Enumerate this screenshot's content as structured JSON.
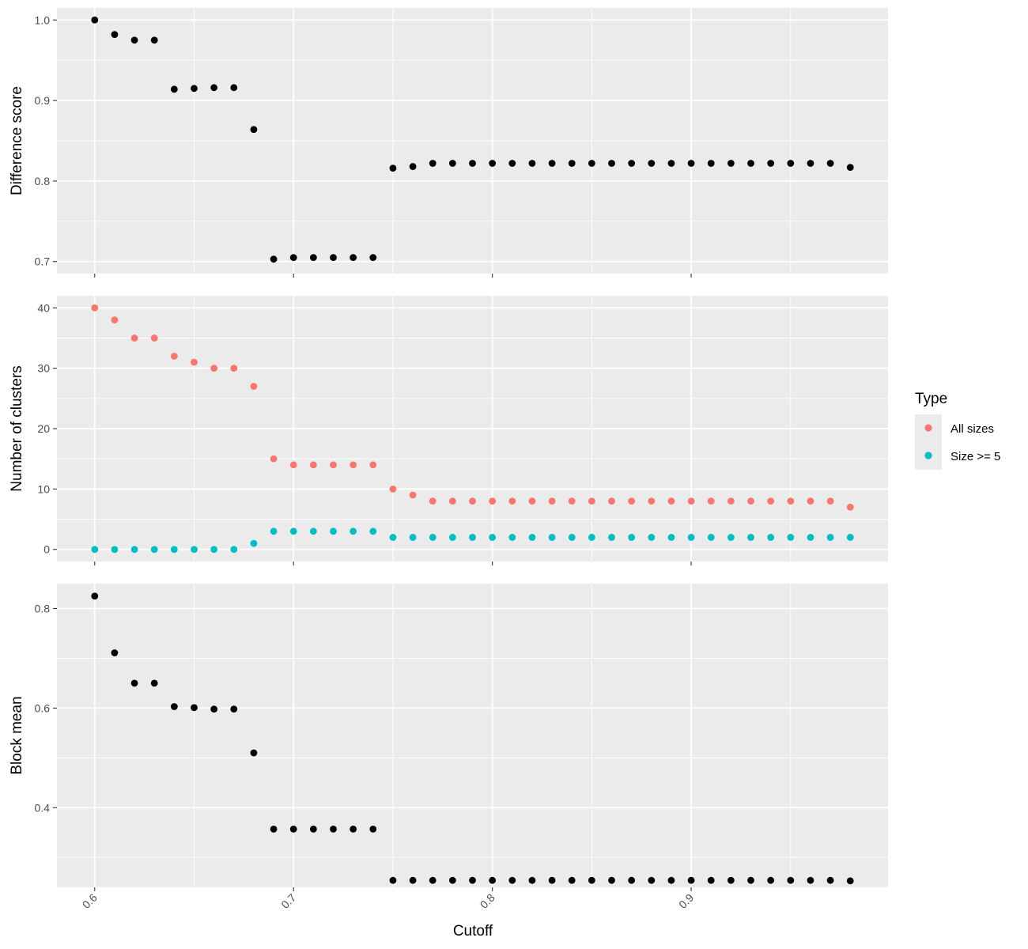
{
  "chart_data": [
    {
      "type": "scatter",
      "id": "difference",
      "xlabel": "",
      "ylabel": "Difference score",
      "ylim": [
        0.685,
        1.015
      ],
      "yticks": [
        0.7,
        0.8,
        0.9,
        1.0
      ],
      "ytick_labels": [
        "0.7",
        "0.8",
        "0.9",
        "1.0"
      ],
      "grid": true,
      "series": [
        {
          "color": "#000000",
          "points": [
            [
              0.6,
              1.0
            ],
            [
              0.61,
              0.982
            ],
            [
              0.62,
              0.975
            ],
            [
              0.63,
              0.975
            ],
            [
              0.64,
              0.914
            ],
            [
              0.65,
              0.915
            ],
            [
              0.66,
              0.916
            ],
            [
              0.67,
              0.916
            ],
            [
              0.68,
              0.864
            ],
            [
              0.69,
              0.703
            ],
            [
              0.7,
              0.705
            ],
            [
              0.71,
              0.705
            ],
            [
              0.72,
              0.705
            ],
            [
              0.73,
              0.705
            ],
            [
              0.74,
              0.705
            ],
            [
              0.75,
              0.816
            ],
            [
              0.76,
              0.818
            ],
            [
              0.77,
              0.822
            ],
            [
              0.78,
              0.822
            ],
            [
              0.79,
              0.822
            ],
            [
              0.8,
              0.822
            ],
            [
              0.81,
              0.822
            ],
            [
              0.82,
              0.822
            ],
            [
              0.83,
              0.822
            ],
            [
              0.84,
              0.822
            ],
            [
              0.85,
              0.822
            ],
            [
              0.86,
              0.822
            ],
            [
              0.87,
              0.822
            ],
            [
              0.88,
              0.822
            ],
            [
              0.89,
              0.822
            ],
            [
              0.9,
              0.822
            ],
            [
              0.91,
              0.822
            ],
            [
              0.92,
              0.822
            ],
            [
              0.93,
              0.822
            ],
            [
              0.94,
              0.822
            ],
            [
              0.95,
              0.822
            ],
            [
              0.96,
              0.822
            ],
            [
              0.97,
              0.822
            ],
            [
              0.98,
              0.817
            ]
          ]
        }
      ]
    },
    {
      "type": "scatter",
      "id": "clusters",
      "xlabel": "",
      "ylabel": "Number of clusters",
      "ylim": [
        -2,
        42
      ],
      "yticks": [
        0,
        10,
        20,
        30,
        40
      ],
      "ytick_labels": [
        "0",
        "10",
        "20",
        "30",
        "40"
      ],
      "grid": true,
      "series": [
        {
          "name": "All sizes",
          "color": "#f8766d",
          "points": [
            [
              0.6,
              40
            ],
            [
              0.61,
              38
            ],
            [
              0.62,
              35
            ],
            [
              0.63,
              35
            ],
            [
              0.64,
              32
            ],
            [
              0.65,
              31
            ],
            [
              0.66,
              30
            ],
            [
              0.67,
              30
            ],
            [
              0.68,
              27
            ],
            [
              0.69,
              15
            ],
            [
              0.7,
              14
            ],
            [
              0.71,
              14
            ],
            [
              0.72,
              14
            ],
            [
              0.73,
              14
            ],
            [
              0.74,
              14
            ],
            [
              0.75,
              10
            ],
            [
              0.76,
              9
            ],
            [
              0.77,
              8
            ],
            [
              0.78,
              8
            ],
            [
              0.79,
              8
            ],
            [
              0.8,
              8
            ],
            [
              0.81,
              8
            ],
            [
              0.82,
              8
            ],
            [
              0.83,
              8
            ],
            [
              0.84,
              8
            ],
            [
              0.85,
              8
            ],
            [
              0.86,
              8
            ],
            [
              0.87,
              8
            ],
            [
              0.88,
              8
            ],
            [
              0.89,
              8
            ],
            [
              0.9,
              8
            ],
            [
              0.91,
              8
            ],
            [
              0.92,
              8
            ],
            [
              0.93,
              8
            ],
            [
              0.94,
              8
            ],
            [
              0.95,
              8
            ],
            [
              0.96,
              8
            ],
            [
              0.97,
              8
            ],
            [
              0.98,
              7
            ]
          ]
        },
        {
          "name": "Size >= 5",
          "color": "#00bfc4",
          "points": [
            [
              0.6,
              0
            ],
            [
              0.61,
              0
            ],
            [
              0.62,
              0
            ],
            [
              0.63,
              0
            ],
            [
              0.64,
              0
            ],
            [
              0.65,
              0
            ],
            [
              0.66,
              0
            ],
            [
              0.67,
              0
            ],
            [
              0.68,
              1
            ],
            [
              0.69,
              3
            ],
            [
              0.7,
              3
            ],
            [
              0.71,
              3
            ],
            [
              0.72,
              3
            ],
            [
              0.73,
              3
            ],
            [
              0.74,
              3
            ],
            [
              0.75,
              2
            ],
            [
              0.76,
              2
            ],
            [
              0.77,
              2
            ],
            [
              0.78,
              2
            ],
            [
              0.79,
              2
            ],
            [
              0.8,
              2
            ],
            [
              0.81,
              2
            ],
            [
              0.82,
              2
            ],
            [
              0.83,
              2
            ],
            [
              0.84,
              2
            ],
            [
              0.85,
              2
            ],
            [
              0.86,
              2
            ],
            [
              0.87,
              2
            ],
            [
              0.88,
              2
            ],
            [
              0.89,
              2
            ],
            [
              0.9,
              2
            ],
            [
              0.91,
              2
            ],
            [
              0.92,
              2
            ],
            [
              0.93,
              2
            ],
            [
              0.94,
              2
            ],
            [
              0.95,
              2
            ],
            [
              0.96,
              2
            ],
            [
              0.97,
              2
            ],
            [
              0.98,
              2
            ]
          ]
        }
      ]
    },
    {
      "type": "scatter",
      "id": "blockmean",
      "xlabel": "Cutoff",
      "ylabel": "Block mean",
      "ylim": [
        0.24,
        0.85
      ],
      "yticks": [
        0.4,
        0.6,
        0.8
      ],
      "ytick_labels": [
        "0.4",
        "0.6",
        "0.8"
      ],
      "grid": true,
      "series": [
        {
          "color": "#000000",
          "points": [
            [
              0.6,
              0.825
            ],
            [
              0.61,
              0.711
            ],
            [
              0.62,
              0.65
            ],
            [
              0.63,
              0.65
            ],
            [
              0.64,
              0.603
            ],
            [
              0.65,
              0.601
            ],
            [
              0.66,
              0.598
            ],
            [
              0.67,
              0.598
            ],
            [
              0.68,
              0.51
            ],
            [
              0.69,
              0.357
            ],
            [
              0.7,
              0.357
            ],
            [
              0.71,
              0.357
            ],
            [
              0.72,
              0.357
            ],
            [
              0.73,
              0.357
            ],
            [
              0.74,
              0.357
            ],
            [
              0.75,
              0.254
            ],
            [
              0.76,
              0.254
            ],
            [
              0.77,
              0.254
            ],
            [
              0.78,
              0.254
            ],
            [
              0.79,
              0.254
            ],
            [
              0.8,
              0.254
            ],
            [
              0.81,
              0.254
            ],
            [
              0.82,
              0.254
            ],
            [
              0.83,
              0.254
            ],
            [
              0.84,
              0.254
            ],
            [
              0.85,
              0.254
            ],
            [
              0.86,
              0.254
            ],
            [
              0.87,
              0.254
            ],
            [
              0.88,
              0.254
            ],
            [
              0.89,
              0.254
            ],
            [
              0.9,
              0.254
            ],
            [
              0.91,
              0.254
            ],
            [
              0.92,
              0.254
            ],
            [
              0.93,
              0.254
            ],
            [
              0.94,
              0.254
            ],
            [
              0.95,
              0.254
            ],
            [
              0.96,
              0.254
            ],
            [
              0.97,
              0.254
            ],
            [
              0.98,
              0.253
            ]
          ]
        }
      ]
    }
  ],
  "x_axis": {
    "label": "Cutoff",
    "xlim": [
      0.581,
      0.999
    ],
    "ticks": [
      0.6,
      0.7,
      0.8,
      0.9
    ],
    "tick_labels": [
      "0.6",
      "0.7",
      "0.8",
      "0.9"
    ],
    "tick_label_rotation_deg": -45
  },
  "legend": {
    "title": "Type",
    "position": "right",
    "entries": [
      {
        "label": "All sizes",
        "color": "#f8766d"
      },
      {
        "label": "Size >= 5",
        "color": "#00bfc4"
      }
    ]
  },
  "theme": {
    "panel_background": "#ebebeb",
    "grid_color": "#ffffff",
    "tick_color": "#333333"
  }
}
